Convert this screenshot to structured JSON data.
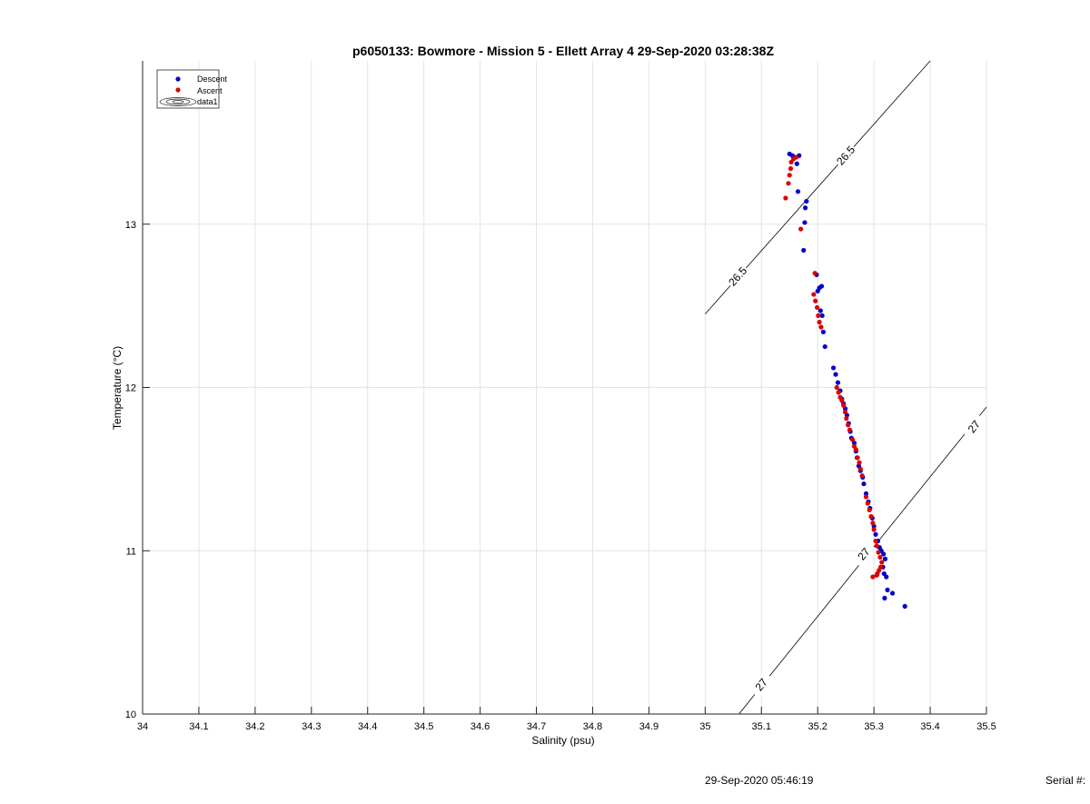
{
  "chart_data": {
    "type": "scatter",
    "title": "p6050133: Bowmore - Mission 5 - Ellett Array 4 29-Sep-2020 03:28:38Z",
    "xlabel": "Salinity (psu)",
    "ylabel": "Temperature (°C)",
    "xlim": [
      34,
      35.5
    ],
    "ylim": [
      10,
      14
    ],
    "xticks": [
      34,
      34.1,
      34.2,
      34.3,
      34.4,
      34.5,
      34.6,
      34.7,
      34.8,
      34.9,
      35,
      35.1,
      35.2,
      35.3,
      35.4,
      35.5
    ],
    "xtick_labels": [
      "34",
      "34.1",
      "34.2",
      "34.3",
      "34.4",
      "34.5",
      "34.6",
      "34.7",
      "34.8",
      "34.9",
      "35",
      "35.1",
      "35.2",
      "35.3",
      "35.4",
      "35.5"
    ],
    "yticks": [
      10,
      11,
      12,
      13
    ],
    "ytick_labels": [
      "10",
      "11",
      "12",
      "13"
    ],
    "grid": true,
    "legend_position": "top-left",
    "legend": [
      "Descent",
      "Ascent",
      "data1"
    ],
    "series": [
      {
        "name": "Descent",
        "color": "#0000cc",
        "points": [
          [
            35.15,
            13.43
          ],
          [
            35.155,
            13.42
          ],
          [
            35.16,
            13.41
          ],
          [
            35.163,
            13.37
          ],
          [
            35.167,
            13.42
          ],
          [
            35.165,
            13.2
          ],
          [
            35.18,
            13.14
          ],
          [
            35.178,
            13.1
          ],
          [
            35.177,
            13.01
          ],
          [
            35.175,
            12.84
          ],
          [
            35.198,
            12.69
          ],
          [
            35.203,
            12.61
          ],
          [
            35.207,
            12.62
          ],
          [
            35.2,
            12.59
          ],
          [
            35.205,
            12.47
          ],
          [
            35.208,
            12.44
          ],
          [
            35.21,
            12.34
          ],
          [
            35.213,
            12.25
          ],
          [
            35.228,
            12.12
          ],
          [
            35.232,
            12.08
          ],
          [
            35.236,
            12.03
          ],
          [
            35.24,
            11.98
          ],
          [
            35.243,
            11.93
          ],
          [
            35.246,
            11.9
          ],
          [
            35.249,
            11.87
          ],
          [
            35.252,
            11.83
          ],
          [
            35.255,
            11.78
          ],
          [
            35.258,
            11.73
          ],
          [
            35.26,
            11.69
          ],
          [
            35.265,
            11.66
          ],
          [
            35.268,
            11.61
          ],
          [
            35.27,
            11.57
          ],
          [
            35.273,
            11.52
          ],
          [
            35.276,
            11.49
          ],
          [
            35.28,
            11.45
          ],
          [
            35.282,
            11.41
          ],
          [
            35.286,
            11.35
          ],
          [
            35.29,
            11.3
          ],
          [
            35.293,
            11.26
          ],
          [
            35.297,
            11.2
          ],
          [
            35.3,
            11.15
          ],
          [
            35.303,
            11.1
          ],
          [
            35.307,
            11.06
          ],
          [
            35.31,
            11.02
          ],
          [
            35.313,
            11.0
          ],
          [
            35.317,
            10.98
          ],
          [
            35.32,
            10.95
          ],
          [
            35.316,
            10.9
          ],
          [
            35.318,
            10.86
          ],
          [
            35.322,
            10.84
          ],
          [
            35.324,
            10.76
          ],
          [
            35.319,
            10.71
          ],
          [
            35.333,
            10.74
          ],
          [
            35.355,
            10.66
          ]
        ]
      },
      {
        "name": "Ascent",
        "color": "#dd0000",
        "points": [
          [
            35.143,
            13.16
          ],
          [
            35.148,
            13.25
          ],
          [
            35.15,
            13.3
          ],
          [
            35.152,
            13.34
          ],
          [
            35.153,
            13.38
          ],
          [
            35.157,
            13.4
          ],
          [
            35.162,
            13.41
          ],
          [
            35.17,
            12.97
          ],
          [
            35.195,
            12.7
          ],
          [
            35.193,
            12.57
          ],
          [
            35.196,
            12.53
          ],
          [
            35.199,
            12.49
          ],
          [
            35.201,
            12.44
          ],
          [
            35.203,
            12.4
          ],
          [
            35.206,
            12.37
          ],
          [
            35.234,
            12.0
          ],
          [
            35.237,
            11.97
          ],
          [
            35.24,
            11.94
          ],
          [
            35.243,
            11.92
          ],
          [
            35.246,
            11.89
          ],
          [
            35.249,
            11.85
          ],
          [
            35.251,
            11.81
          ],
          [
            35.254,
            11.77
          ],
          [
            35.257,
            11.74
          ],
          [
            35.262,
            11.68
          ],
          [
            35.265,
            11.64
          ],
          [
            35.268,
            11.62
          ],
          [
            35.271,
            11.57
          ],
          [
            35.274,
            11.54
          ],
          [
            35.276,
            11.5
          ],
          [
            35.279,
            11.46
          ],
          [
            35.286,
            11.33
          ],
          [
            35.289,
            11.29
          ],
          [
            35.292,
            11.25
          ],
          [
            35.295,
            11.21
          ],
          [
            35.298,
            11.17
          ],
          [
            35.3,
            11.13
          ],
          [
            35.303,
            11.06
          ],
          [
            35.305,
            11.03
          ],
          [
            35.308,
            10.99
          ],
          [
            35.311,
            10.96
          ],
          [
            35.314,
            10.93
          ],
          [
            35.312,
            10.9
          ],
          [
            35.309,
            10.88
          ],
          [
            35.306,
            10.86
          ],
          [
            35.298,
            10.84
          ],
          [
            35.305,
            10.85
          ]
        ]
      }
    ],
    "contours": [
      {
        "level_label": "26.5",
        "points": [
          [
            35.0,
            12.45
          ],
          [
            35.4,
            14.0
          ]
        ],
        "label_positions": [
          [
            35.058,
            12.68
          ],
          [
            35.25,
            13.42
          ]
        ]
      },
      {
        "level_label": "27",
        "points": [
          [
            35.06,
            10.0
          ],
          [
            35.5,
            11.88
          ]
        ],
        "label_positions": [
          [
            35.1,
            10.18
          ],
          [
            35.282,
            10.98
          ],
          [
            35.478,
            11.76
          ]
        ]
      }
    ]
  },
  "footer": {
    "date": "29-Sep-2020 05:46:19",
    "serial": "Serial #:"
  }
}
